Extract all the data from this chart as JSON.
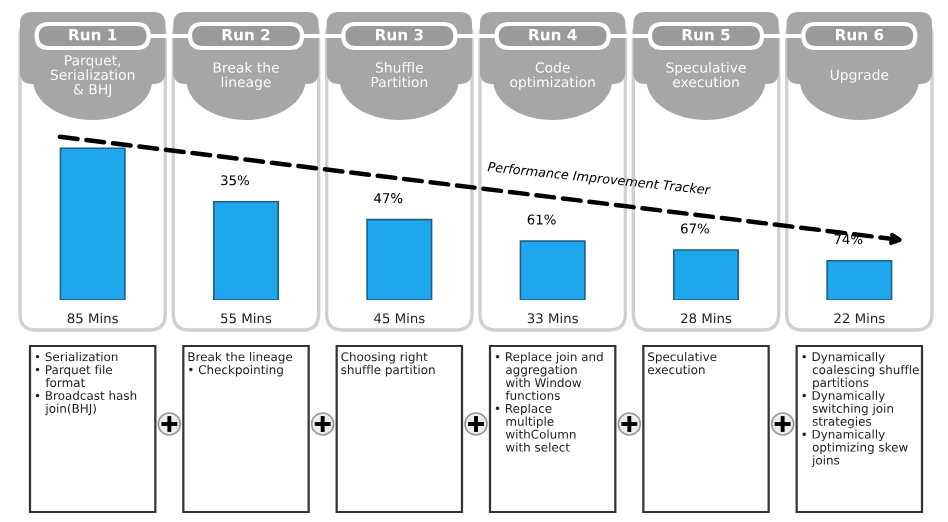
{
  "chart_data": {
    "type": "bar",
    "categories": [
      "Run 1",
      "Run 2",
      "Run 3",
      "Run 4",
      "Run 5",
      "Run 6"
    ],
    "values": [
      85,
      55,
      45,
      33,
      28,
      22
    ],
    "value_labels": [
      "85 Mins",
      "55 Mins",
      "45 Mins",
      "33 Mins",
      "28 Mins",
      "22 Mins"
    ],
    "color": "#1ea7ec",
    "annotations": [
      "Parquet,\nSerialization\n& BHJ",
      "Break the\nlineage",
      "Shuffle\nPartition",
      "Code\noptimization",
      "Speculative\nexecution",
      "Upgrade",
      "• Serialization\n• Parquet file\n   format\n• Broadcast hash\n   join(BHJ)",
      "Break the lineage\n• Checkpointing",
      "Choosing right\nshuffle partition",
      "• Replace join and\n   aggregation\n   with Window\n   functions\n• Replace\n   multiple\n   withColumn\n   with select",
      "Speculative\nexecution",
      "• Dynamically\n   coalescing shuffle\n   partitions\n• Dynamically\n   switching join\n   strategies\n• Dynamically\n   optimizing skew\n   joins",
      "Performance Improvement Tracker",
      {
        "text": "35%",
        "x": "Run 2",
        "y": 55
      },
      {
        "text": "47%",
        "x": "Run 3",
        "y": 45
      },
      {
        "text": "61%",
        "x": "Run 4",
        "y": 33
      },
      {
        "text": "67%",
        "x": "Run 5",
        "y": 28
      },
      {
        "text": "74%",
        "x": "Run 6",
        "y": 22
      }
    ]
  }
}
